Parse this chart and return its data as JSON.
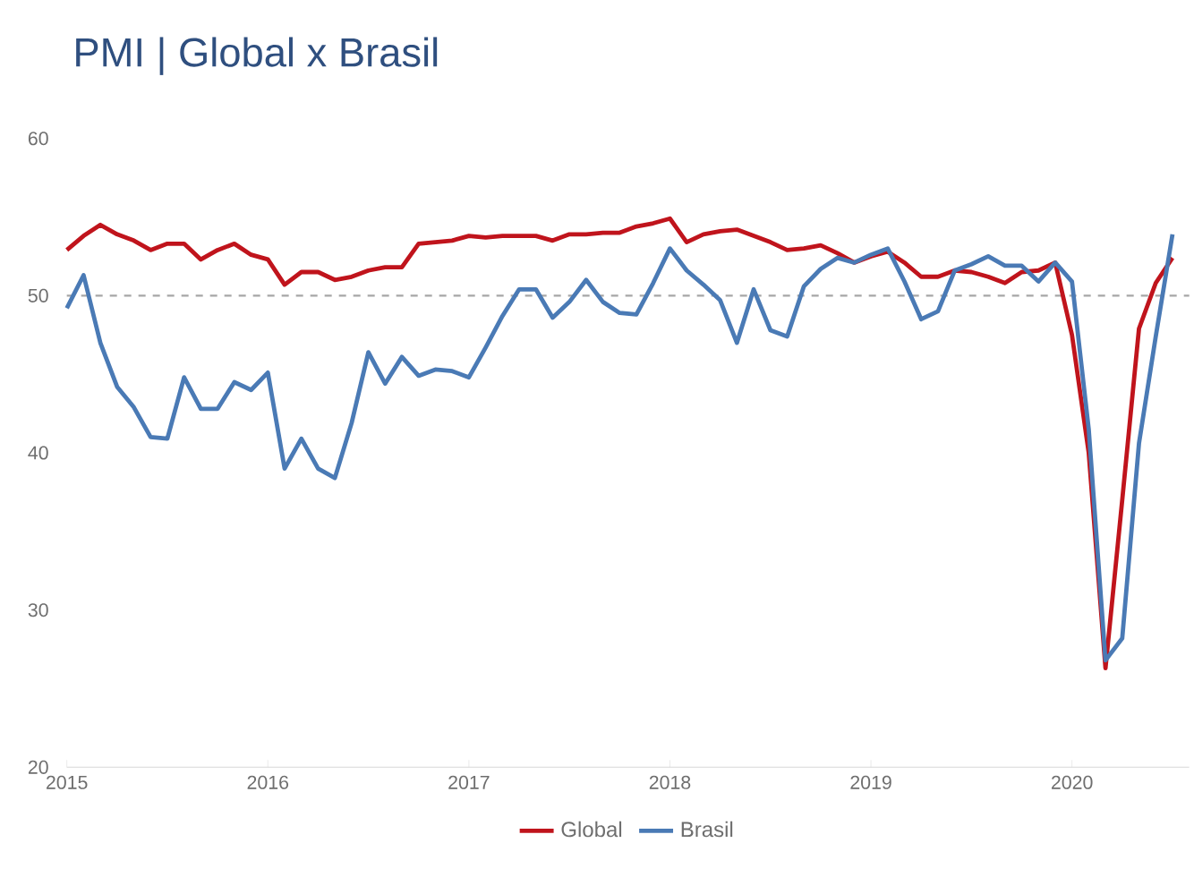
{
  "chart_data": {
    "type": "line",
    "title": "PMI | Global x Brasil",
    "x": [
      "2015-01",
      "2015-02",
      "2015-03",
      "2015-04",
      "2015-05",
      "2015-06",
      "2015-07",
      "2015-08",
      "2015-09",
      "2015-10",
      "2015-11",
      "2015-12",
      "2016-01",
      "2016-02",
      "2016-03",
      "2016-04",
      "2016-05",
      "2016-06",
      "2016-07",
      "2016-08",
      "2016-09",
      "2016-10",
      "2016-11",
      "2016-12",
      "2017-01",
      "2017-02",
      "2017-03",
      "2017-04",
      "2017-05",
      "2017-06",
      "2017-07",
      "2017-08",
      "2017-09",
      "2017-10",
      "2017-11",
      "2017-12",
      "2018-01",
      "2018-02",
      "2018-03",
      "2018-04",
      "2018-05",
      "2018-06",
      "2018-07",
      "2018-08",
      "2018-09",
      "2018-10",
      "2018-11",
      "2018-12",
      "2019-01",
      "2019-02",
      "2019-03",
      "2019-04",
      "2019-05",
      "2019-06",
      "2019-07",
      "2019-08",
      "2019-09",
      "2019-10",
      "2019-11",
      "2019-12",
      "2020-01",
      "2020-02",
      "2020-03",
      "2020-04",
      "2020-05",
      "2020-06",
      "2020-07"
    ],
    "series": [
      {
        "name": "Global",
        "color": "#c0141c",
        "values": [
          52.9,
          53.8,
          54.5,
          53.9,
          53.5,
          52.9,
          53.3,
          53.3,
          52.3,
          52.9,
          53.3,
          52.6,
          52.3,
          50.7,
          51.5,
          51.5,
          51.0,
          51.2,
          51.6,
          51.8,
          51.8,
          53.3,
          53.4,
          53.5,
          53.8,
          53.7,
          53.8,
          53.8,
          53.8,
          53.5,
          53.9,
          53.9,
          54.0,
          54.0,
          54.4,
          54.6,
          54.9,
          53.4,
          53.9,
          54.1,
          54.2,
          53.8,
          53.4,
          52.9,
          53.0,
          53.2,
          52.7,
          52.1,
          52.5,
          52.8,
          52.1,
          51.2,
          51.2,
          51.6,
          51.5,
          51.2,
          50.8,
          51.5,
          51.6,
          52.1,
          47.5,
          40.0,
          26.3,
          37.0,
          47.9,
          50.8,
          52.4
        ]
      },
      {
        "name": "Brasil",
        "color": "#4a7ab5",
        "values": [
          49.2,
          51.3,
          47.0,
          44.2,
          42.9,
          41.0,
          40.9,
          44.8,
          42.8,
          42.8,
          44.5,
          44.0,
          45.1,
          39.0,
          40.9,
          39.0,
          38.4,
          41.9,
          46.4,
          44.4,
          46.1,
          44.9,
          45.3,
          45.2,
          44.8,
          46.7,
          48.7,
          50.4,
          50.4,
          48.6,
          49.6,
          51.0,
          49.6,
          48.9,
          48.8,
          50.8,
          53.0,
          51.6,
          50.7,
          49.7,
          47.0,
          50.4,
          47.8,
          47.4,
          50.6,
          51.7,
          52.4,
          52.1,
          52.6,
          53.0,
          50.9,
          48.5,
          49.0,
          51.6,
          52.0,
          52.5,
          51.9,
          51.9,
          50.9,
          52.1,
          50.9,
          41.5,
          26.8,
          28.2,
          40.6,
          47.4,
          53.9
        ]
      }
    ],
    "xlim": [
      "2015-01",
      "2020-08"
    ],
    "xticks": [
      "2015",
      "2016",
      "2017",
      "2018",
      "2019",
      "2020"
    ],
    "ylim": [
      20,
      60
    ],
    "yticks": [
      20,
      30,
      40,
      50,
      60
    ],
    "ref_lines": [
      {
        "axis": "y",
        "value": 50,
        "color": "#a6a6a6",
        "line_style": "dashed"
      }
    ],
    "legend": "bottom",
    "grid": false,
    "marker": "none",
    "line_style": "solid"
  }
}
